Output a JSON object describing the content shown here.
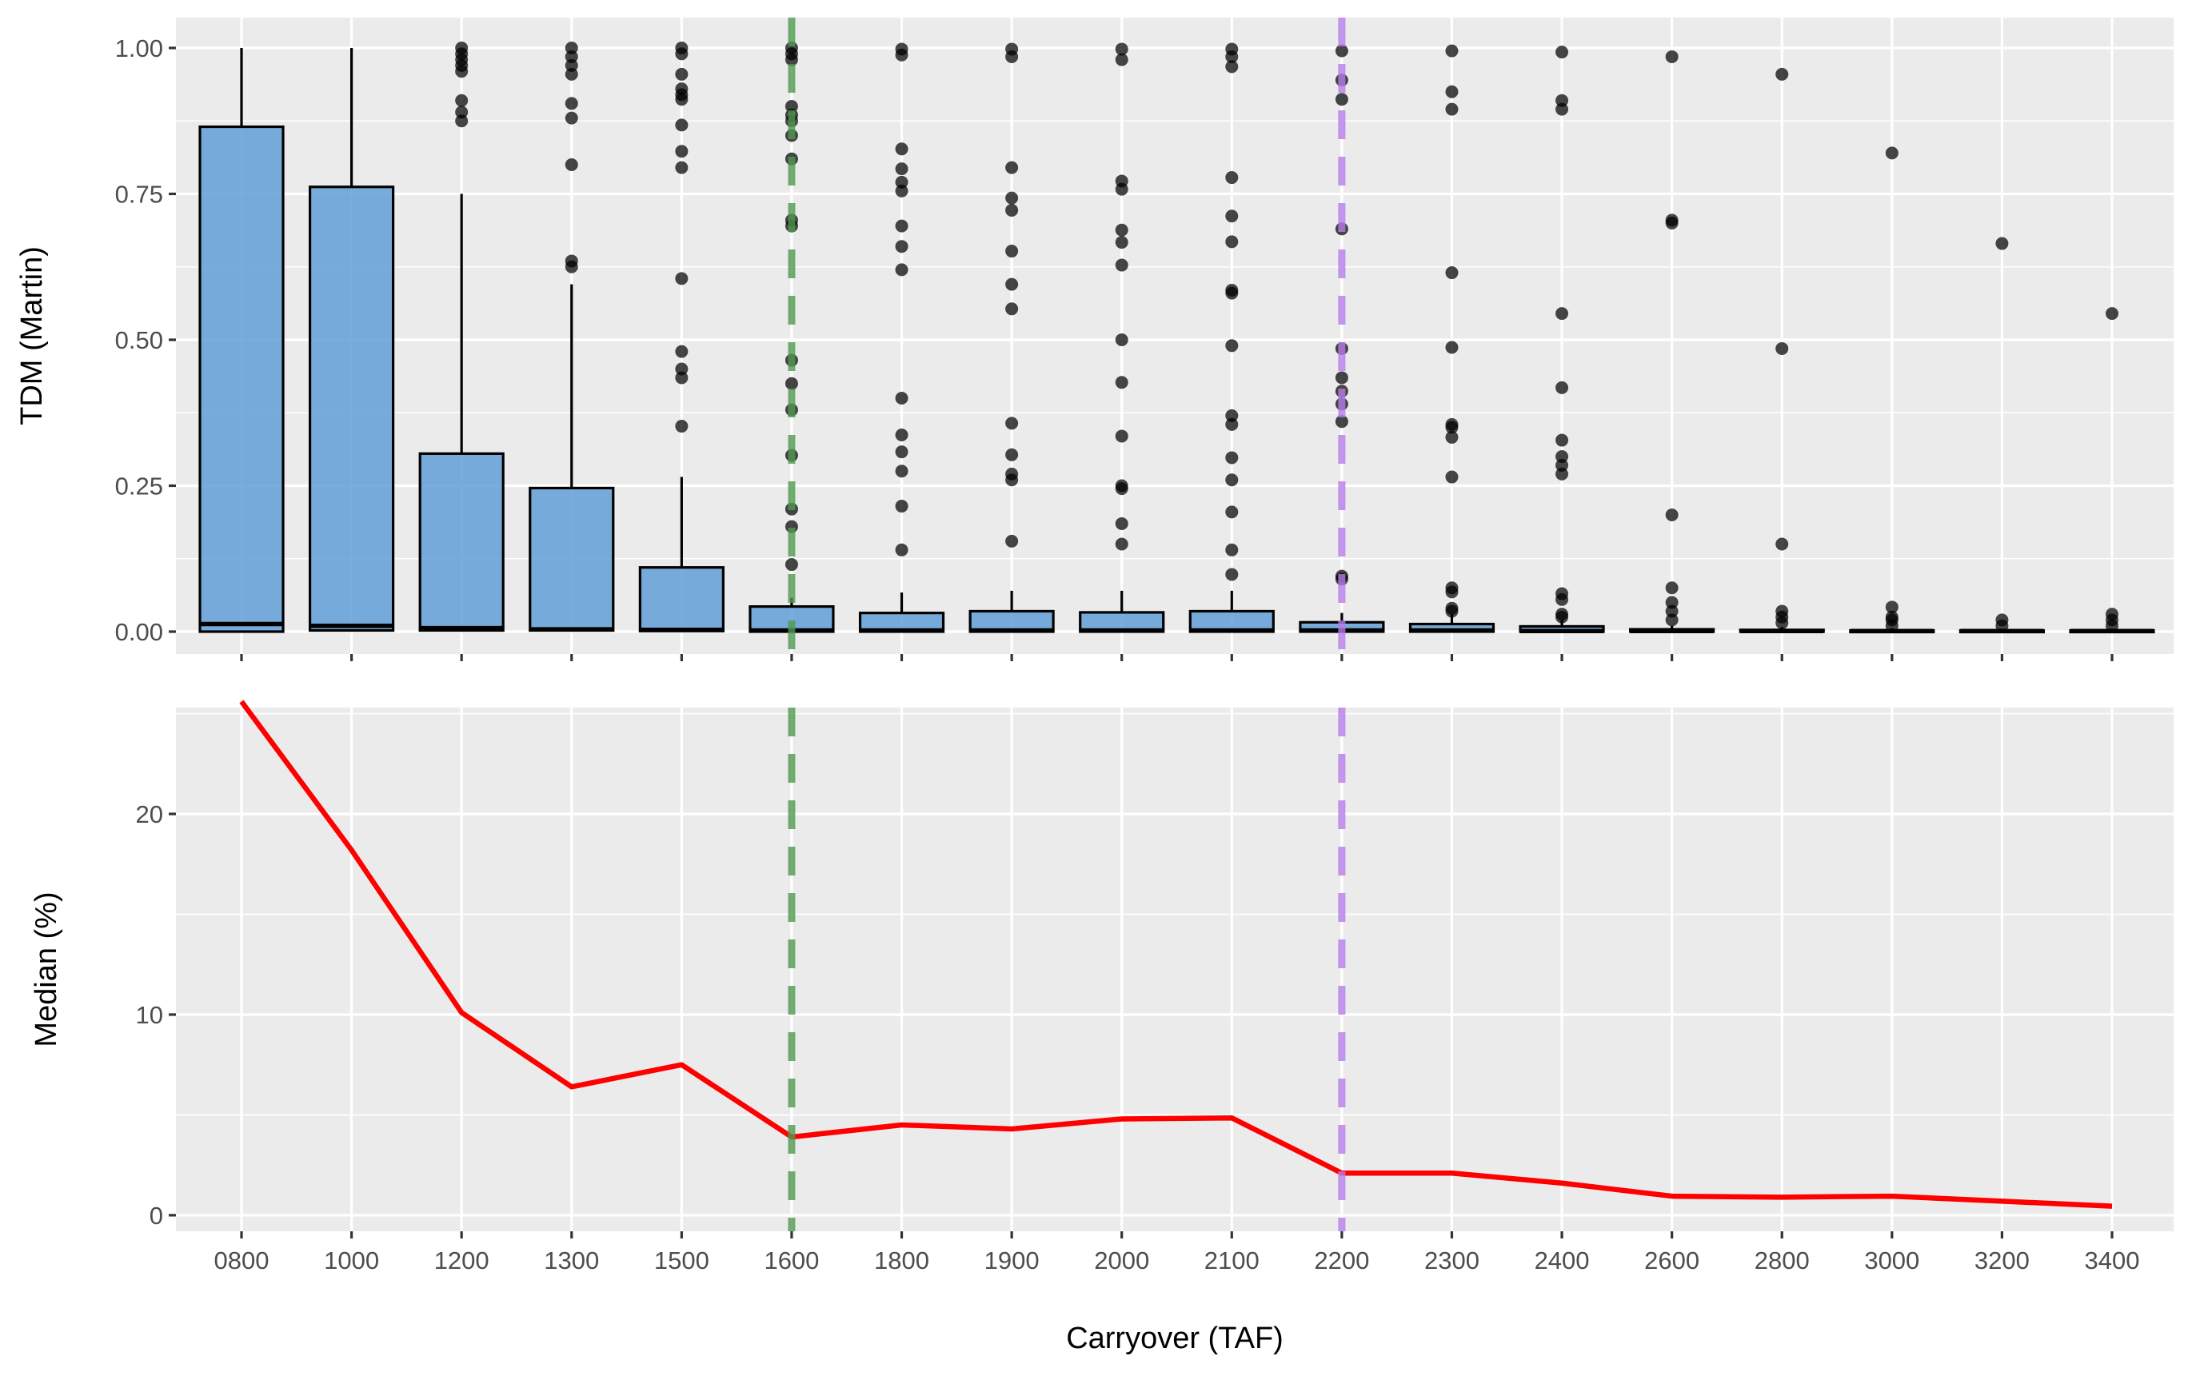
{
  "chart_data": [
    {
      "type": "box",
      "panel": "top",
      "ylabel": "TDM (Martin)",
      "ylim": [
        0,
        1
      ],
      "y_ticks": [
        "0.00",
        "0.25",
        "0.50",
        "0.75",
        "1.00"
      ],
      "y_tick_values": [
        0,
        0.25,
        0.5,
        0.75,
        1.0
      ],
      "categories": [
        "0800",
        "1000",
        "1200",
        "1300",
        "1500",
        "1600",
        "1800",
        "1900",
        "2000",
        "2100",
        "2200",
        "2300",
        "2400",
        "2600",
        "2800",
        "3000",
        "3200",
        "3400"
      ],
      "box_fill": "#5B9BD5",
      "boxes": [
        {
          "cat": "0800",
          "q1": 0.0,
          "median": 0.013,
          "q3": 0.865,
          "lower": 0.0,
          "upper": 1.0,
          "outliers": []
        },
        {
          "cat": "1000",
          "q1": 0.002,
          "median": 0.01,
          "q3": 0.762,
          "lower": 0.0,
          "upper": 1.0,
          "outliers": []
        },
        {
          "cat": "1200",
          "q1": 0.002,
          "median": 0.006,
          "q3": 0.305,
          "lower": 0.0,
          "upper": 0.75,
          "outliers": [
            0.875,
            0.89,
            0.91,
            0.96,
            0.97,
            0.98,
            0.99,
            1.0
          ]
        },
        {
          "cat": "1300",
          "q1": 0.002,
          "median": 0.004,
          "q3": 0.246,
          "lower": 0.0,
          "upper": 0.595,
          "outliers": [
            0.625,
            0.635,
            0.8,
            0.88,
            0.905,
            0.955,
            0.97,
            0.985,
            1.0
          ]
        },
        {
          "cat": "1500",
          "q1": 0.001,
          "median": 0.003,
          "q3": 0.11,
          "lower": 0.0,
          "upper": 0.265,
          "outliers": [
            0.352,
            0.435,
            0.45,
            0.48,
            0.605,
            0.795,
            0.823,
            0.868,
            0.912,
            0.92,
            0.93,
            0.955,
            0.99,
            1.0
          ]
        },
        {
          "cat": "1600",
          "q1": 0.0,
          "median": 0.002,
          "q3": 0.043,
          "lower": 0.0,
          "upper": 0.058,
          "outliers": [
            0.115,
            0.18,
            0.21,
            0.302,
            0.38,
            0.425,
            0.465,
            0.695,
            0.705,
            0.81,
            0.85,
            0.875,
            0.885,
            0.9,
            0.98,
            0.99,
            1.0
          ]
        },
        {
          "cat": "1800",
          "q1": 0.0,
          "median": 0.002,
          "q3": 0.032,
          "lower": 0.0,
          "upper": 0.067,
          "outliers": [
            0.14,
            0.215,
            0.275,
            0.308,
            0.337,
            0.4,
            0.62,
            0.66,
            0.695,
            0.755,
            0.77,
            0.793,
            0.827,
            0.988,
            0.998
          ]
        },
        {
          "cat": "1900",
          "q1": 0.0,
          "median": 0.002,
          "q3": 0.035,
          "lower": 0.0,
          "upper": 0.07,
          "outliers": [
            0.155,
            0.26,
            0.27,
            0.303,
            0.357,
            0.553,
            0.595,
            0.652,
            0.722,
            0.743,
            0.795,
            0.985,
            0.998
          ]
        },
        {
          "cat": "2000",
          "q1": 0.0,
          "median": 0.002,
          "q3": 0.033,
          "lower": 0.0,
          "upper": 0.07,
          "outliers": [
            0.15,
            0.185,
            0.245,
            0.25,
            0.335,
            0.427,
            0.5,
            0.628,
            0.667,
            0.688,
            0.758,
            0.772,
            0.98,
            0.998
          ]
        },
        {
          "cat": "2100",
          "q1": 0.0,
          "median": 0.002,
          "q3": 0.035,
          "lower": 0.0,
          "upper": 0.07,
          "outliers": [
            0.098,
            0.14,
            0.205,
            0.26,
            0.298,
            0.355,
            0.37,
            0.49,
            0.58,
            0.585,
            0.668,
            0.712,
            0.778,
            0.968,
            0.985,
            0.998
          ]
        },
        {
          "cat": "2200",
          "q1": 0.0,
          "median": 0.002,
          "q3": 0.016,
          "lower": 0.0,
          "upper": 0.032,
          "outliers": [
            0.09,
            0.095,
            0.36,
            0.39,
            0.412,
            0.435,
            0.485,
            0.69,
            0.912,
            0.945,
            0.995
          ]
        },
        {
          "cat": "2300",
          "q1": 0.0,
          "median": 0.002,
          "q3": 0.013,
          "lower": 0.0,
          "upper": 0.03,
          "outliers": [
            0.035,
            0.04,
            0.068,
            0.075,
            0.265,
            0.333,
            0.35,
            0.355,
            0.487,
            0.615,
            0.895,
            0.925,
            0.995
          ]
        },
        {
          "cat": "2400",
          "q1": 0.0,
          "median": 0.001,
          "q3": 0.009,
          "lower": 0.0,
          "upper": 0.02,
          "outliers": [
            0.025,
            0.03,
            0.055,
            0.065,
            0.27,
            0.285,
            0.3,
            0.328,
            0.418,
            0.545,
            0.895,
            0.91,
            0.993
          ]
        },
        {
          "cat": "2600",
          "q1": 0.0,
          "median": 0.001,
          "q3": 0.004,
          "lower": 0.0,
          "upper": 0.01,
          "outliers": [
            0.02,
            0.035,
            0.05,
            0.075,
            0.2,
            0.7,
            0.705,
            0.985
          ]
        },
        {
          "cat": "2800",
          "q1": 0.0,
          "median": 0.001,
          "q3": 0.003,
          "lower": 0.0,
          "upper": 0.008,
          "outliers": [
            0.015,
            0.025,
            0.035,
            0.15,
            0.485,
            0.955
          ]
        },
        {
          "cat": "3000",
          "q1": 0.0,
          "median": 0.001,
          "q3": 0.002,
          "lower": 0.0,
          "upper": 0.006,
          "outliers": [
            0.01,
            0.02,
            0.025,
            0.042,
            0.82
          ]
        },
        {
          "cat": "3200",
          "q1": 0.0,
          "median": 0.001,
          "q3": 0.002,
          "lower": 0.0,
          "upper": 0.005,
          "outliers": [
            0.01,
            0.02,
            0.665
          ]
        },
        {
          "cat": "3400",
          "q1": 0.0,
          "median": 0.001,
          "q3": 0.002,
          "lower": 0.0,
          "upper": 0.005,
          "outliers": [
            0.01,
            0.02,
            0.03,
            0.545
          ]
        }
      ]
    },
    {
      "type": "line",
      "panel": "bottom",
      "ylabel": "Median (%)",
      "xlabel": "Carryover (TAF)",
      "ylim": [
        -0.8,
        25.3
      ],
      "y_ticks": [
        "0",
        "10",
        "20"
      ],
      "y_tick_values": [
        0,
        10,
        20
      ],
      "categories": [
        "0800",
        "1000",
        "1200",
        "1300",
        "1500",
        "1600",
        "1800",
        "1900",
        "2000",
        "2100",
        "2200",
        "2300",
        "2400",
        "2600",
        "2800",
        "3000",
        "3200",
        "3400"
      ],
      "series": [
        {
          "name": "Median",
          "color": "#FF0000",
          "values": [
            25.6,
            18.2,
            10.1,
            6.4,
            7.5,
            3.9,
            4.5,
            4.3,
            4.8,
            4.85,
            2.1,
            2.1,
            1.6,
            0.95,
            0.9,
            0.95,
            0.7,
            0.45
          ]
        }
      ]
    }
  ],
  "reference_lines": [
    {
      "category": "1600",
      "color": "#4F9A4F"
    },
    {
      "category": "2200",
      "color": "#B77CE8"
    }
  ]
}
